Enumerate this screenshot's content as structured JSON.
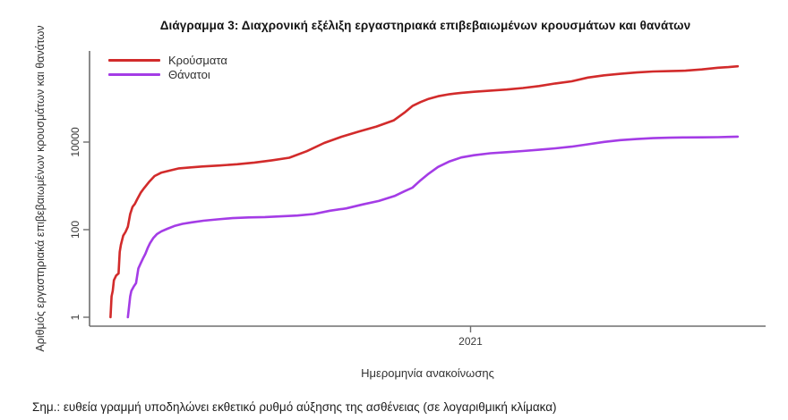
{
  "note": "Σημ.: ευθεία γραμμή υποδηλώνει εκθετικό ρυθμό αύξησης της ασθένειας (σε λογαριθμική κλίμακα)",
  "chart_data": {
    "type": "line",
    "title": "Διάγραμμα 3: Διαχρονική εξέλιξη εργαστηριακά επιβεβαιωμένων κρουσμάτων και θανάτων",
    "xlabel": "Ημερομηνία ανακοίνωσης",
    "ylabel": "Αριθμός εργαστηριακά επιβεβαιωμένων κρουσμάτων και θανάτων",
    "yscale": "log",
    "grid": false,
    "legend_position": "top-left",
    "ylim": [
      0.625,
      1206000
    ],
    "xlim": [
      "2020-02-08",
      "2021-09-12"
    ],
    "yticks": [
      1,
      100,
      10000
    ],
    "ytick_labels": [
      "1",
      "100",
      "10000"
    ],
    "xticks": [
      "2021-01-01"
    ],
    "xtick_labels": [
      "2021"
    ],
    "axis_color": "#6e6e6e",
    "series": [
      {
        "id": "cases",
        "name": "Κρούσματα",
        "color": "#d22b2b",
        "points": [
          [
            "2020-02-26",
            1
          ],
          [
            "2020-02-27",
            3
          ],
          [
            "2020-02-28",
            4
          ],
          [
            "2020-02-29",
            7
          ],
          [
            "2020-03-02",
            9
          ],
          [
            "2020-03-04",
            10
          ],
          [
            "2020-03-05",
            31
          ],
          [
            "2020-03-06",
            45
          ],
          [
            "2020-03-08",
            73
          ],
          [
            "2020-03-10",
            89
          ],
          [
            "2020-03-12",
            117
          ],
          [
            "2020-03-14",
            228
          ],
          [
            "2020-03-16",
            331
          ],
          [
            "2020-03-18",
            387
          ],
          [
            "2020-03-20",
            495
          ],
          [
            "2020-03-23",
            695
          ],
          [
            "2020-03-26",
            892
          ],
          [
            "2020-03-30",
            1212
          ],
          [
            "2020-04-04",
            1673
          ],
          [
            "2020-04-10",
            2011
          ],
          [
            "2020-04-17",
            2235
          ],
          [
            "2020-04-25",
            2506
          ],
          [
            "2020-05-04",
            2632
          ],
          [
            "2020-05-15",
            2770
          ],
          [
            "2020-05-30",
            2915
          ],
          [
            "2020-06-14",
            3112
          ],
          [
            "2020-06-29",
            3409
          ],
          [
            "2020-07-14",
            3826
          ],
          [
            "2020-07-29",
            4401
          ],
          [
            "2020-08-13",
            6177
          ],
          [
            "2020-08-28",
            9531
          ],
          [
            "2020-09-12",
            13240
          ],
          [
            "2020-09-27",
            17444
          ],
          [
            "2020-10-12",
            22652
          ],
          [
            "2020-10-27",
            31496
          ],
          [
            "2020-11-05",
            46892
          ],
          [
            "2020-11-12",
            66637
          ],
          [
            "2020-11-19",
            82034
          ],
          [
            "2020-11-26",
            97288
          ],
          [
            "2020-12-04",
            111537
          ],
          [
            "2020-12-14",
            124310
          ],
          [
            "2020-12-24",
            133346
          ],
          [
            "2021-01-04",
            140526
          ],
          [
            "2021-01-18",
            149429
          ],
          [
            "2021-02-01",
            158716
          ],
          [
            "2021-02-15",
            171542
          ],
          [
            "2021-03-01",
            190235
          ],
          [
            "2021-03-15",
            218092
          ],
          [
            "2021-03-29",
            244115
          ],
          [
            "2021-04-12",
            296653
          ],
          [
            "2021-04-26",
            334436
          ],
          [
            "2021-05-10",
            362004
          ],
          [
            "2021-05-24",
            388760
          ],
          [
            "2021-06-07",
            409368
          ],
          [
            "2021-06-21",
            417253
          ],
          [
            "2021-07-05",
            426963
          ],
          [
            "2021-07-19",
            455681
          ],
          [
            "2021-08-02",
            497385
          ],
          [
            "2021-08-11",
            516146
          ],
          [
            "2021-08-19",
            538546
          ]
        ]
      },
      {
        "id": "deaths",
        "name": "Θάνατοι",
        "color": "#a43ce6",
        "points": [
          [
            "2020-03-12",
            1
          ],
          [
            "2020-03-14",
            3
          ],
          [
            "2020-03-15",
            4
          ],
          [
            "2020-03-17",
            5
          ],
          [
            "2020-03-19",
            6
          ],
          [
            "2020-03-21",
            13
          ],
          [
            "2020-03-23",
            17
          ],
          [
            "2020-03-25",
            22
          ],
          [
            "2020-03-27",
            28
          ],
          [
            "2020-03-29",
            38
          ],
          [
            "2020-03-31",
            49
          ],
          [
            "2020-04-03",
            65
          ],
          [
            "2020-04-06",
            79
          ],
          [
            "2020-04-10",
            92
          ],
          [
            "2020-04-15",
            105
          ],
          [
            "2020-04-21",
            121
          ],
          [
            "2020-04-28",
            136
          ],
          [
            "2020-05-06",
            147
          ],
          [
            "2020-05-16",
            160
          ],
          [
            "2020-05-28",
            172
          ],
          [
            "2020-06-10",
            183
          ],
          [
            "2020-06-24",
            190
          ],
          [
            "2020-07-08",
            194
          ],
          [
            "2020-07-22",
            201
          ],
          [
            "2020-08-05",
            210
          ],
          [
            "2020-08-19",
            228
          ],
          [
            "2020-09-02",
            271
          ],
          [
            "2020-09-16",
            306
          ],
          [
            "2020-09-30",
            376
          ],
          [
            "2020-10-14",
            451
          ],
          [
            "2020-10-28",
            593
          ],
          [
            "2020-11-05",
            749
          ],
          [
            "2020-11-12",
            909
          ],
          [
            "2020-11-19",
            1347
          ],
          [
            "2020-11-26",
            1902
          ],
          [
            "2020-12-04",
            2706
          ],
          [
            "2020-12-14",
            3625
          ],
          [
            "2020-12-24",
            4457
          ],
          [
            "2021-01-04",
            5011
          ],
          [
            "2021-01-18",
            5546
          ],
          [
            "2021-02-01",
            5878
          ],
          [
            "2021-02-15",
            6249
          ],
          [
            "2021-03-01",
            6664
          ],
          [
            "2021-03-15",
            7196
          ],
          [
            "2021-03-29",
            7880
          ],
          [
            "2021-04-12",
            8885
          ],
          [
            "2021-04-26",
            10087
          ],
          [
            "2021-05-10",
            11089
          ],
          [
            "2021-05-24",
            11747
          ],
          [
            "2021-06-07",
            12277
          ],
          [
            "2021-06-21",
            12589
          ],
          [
            "2021-07-05",
            12754
          ],
          [
            "2021-07-19",
            12852
          ],
          [
            "2021-08-02",
            12956
          ],
          [
            "2021-08-11",
            13103
          ],
          [
            "2021-08-19",
            13310
          ]
        ]
      }
    ]
  }
}
